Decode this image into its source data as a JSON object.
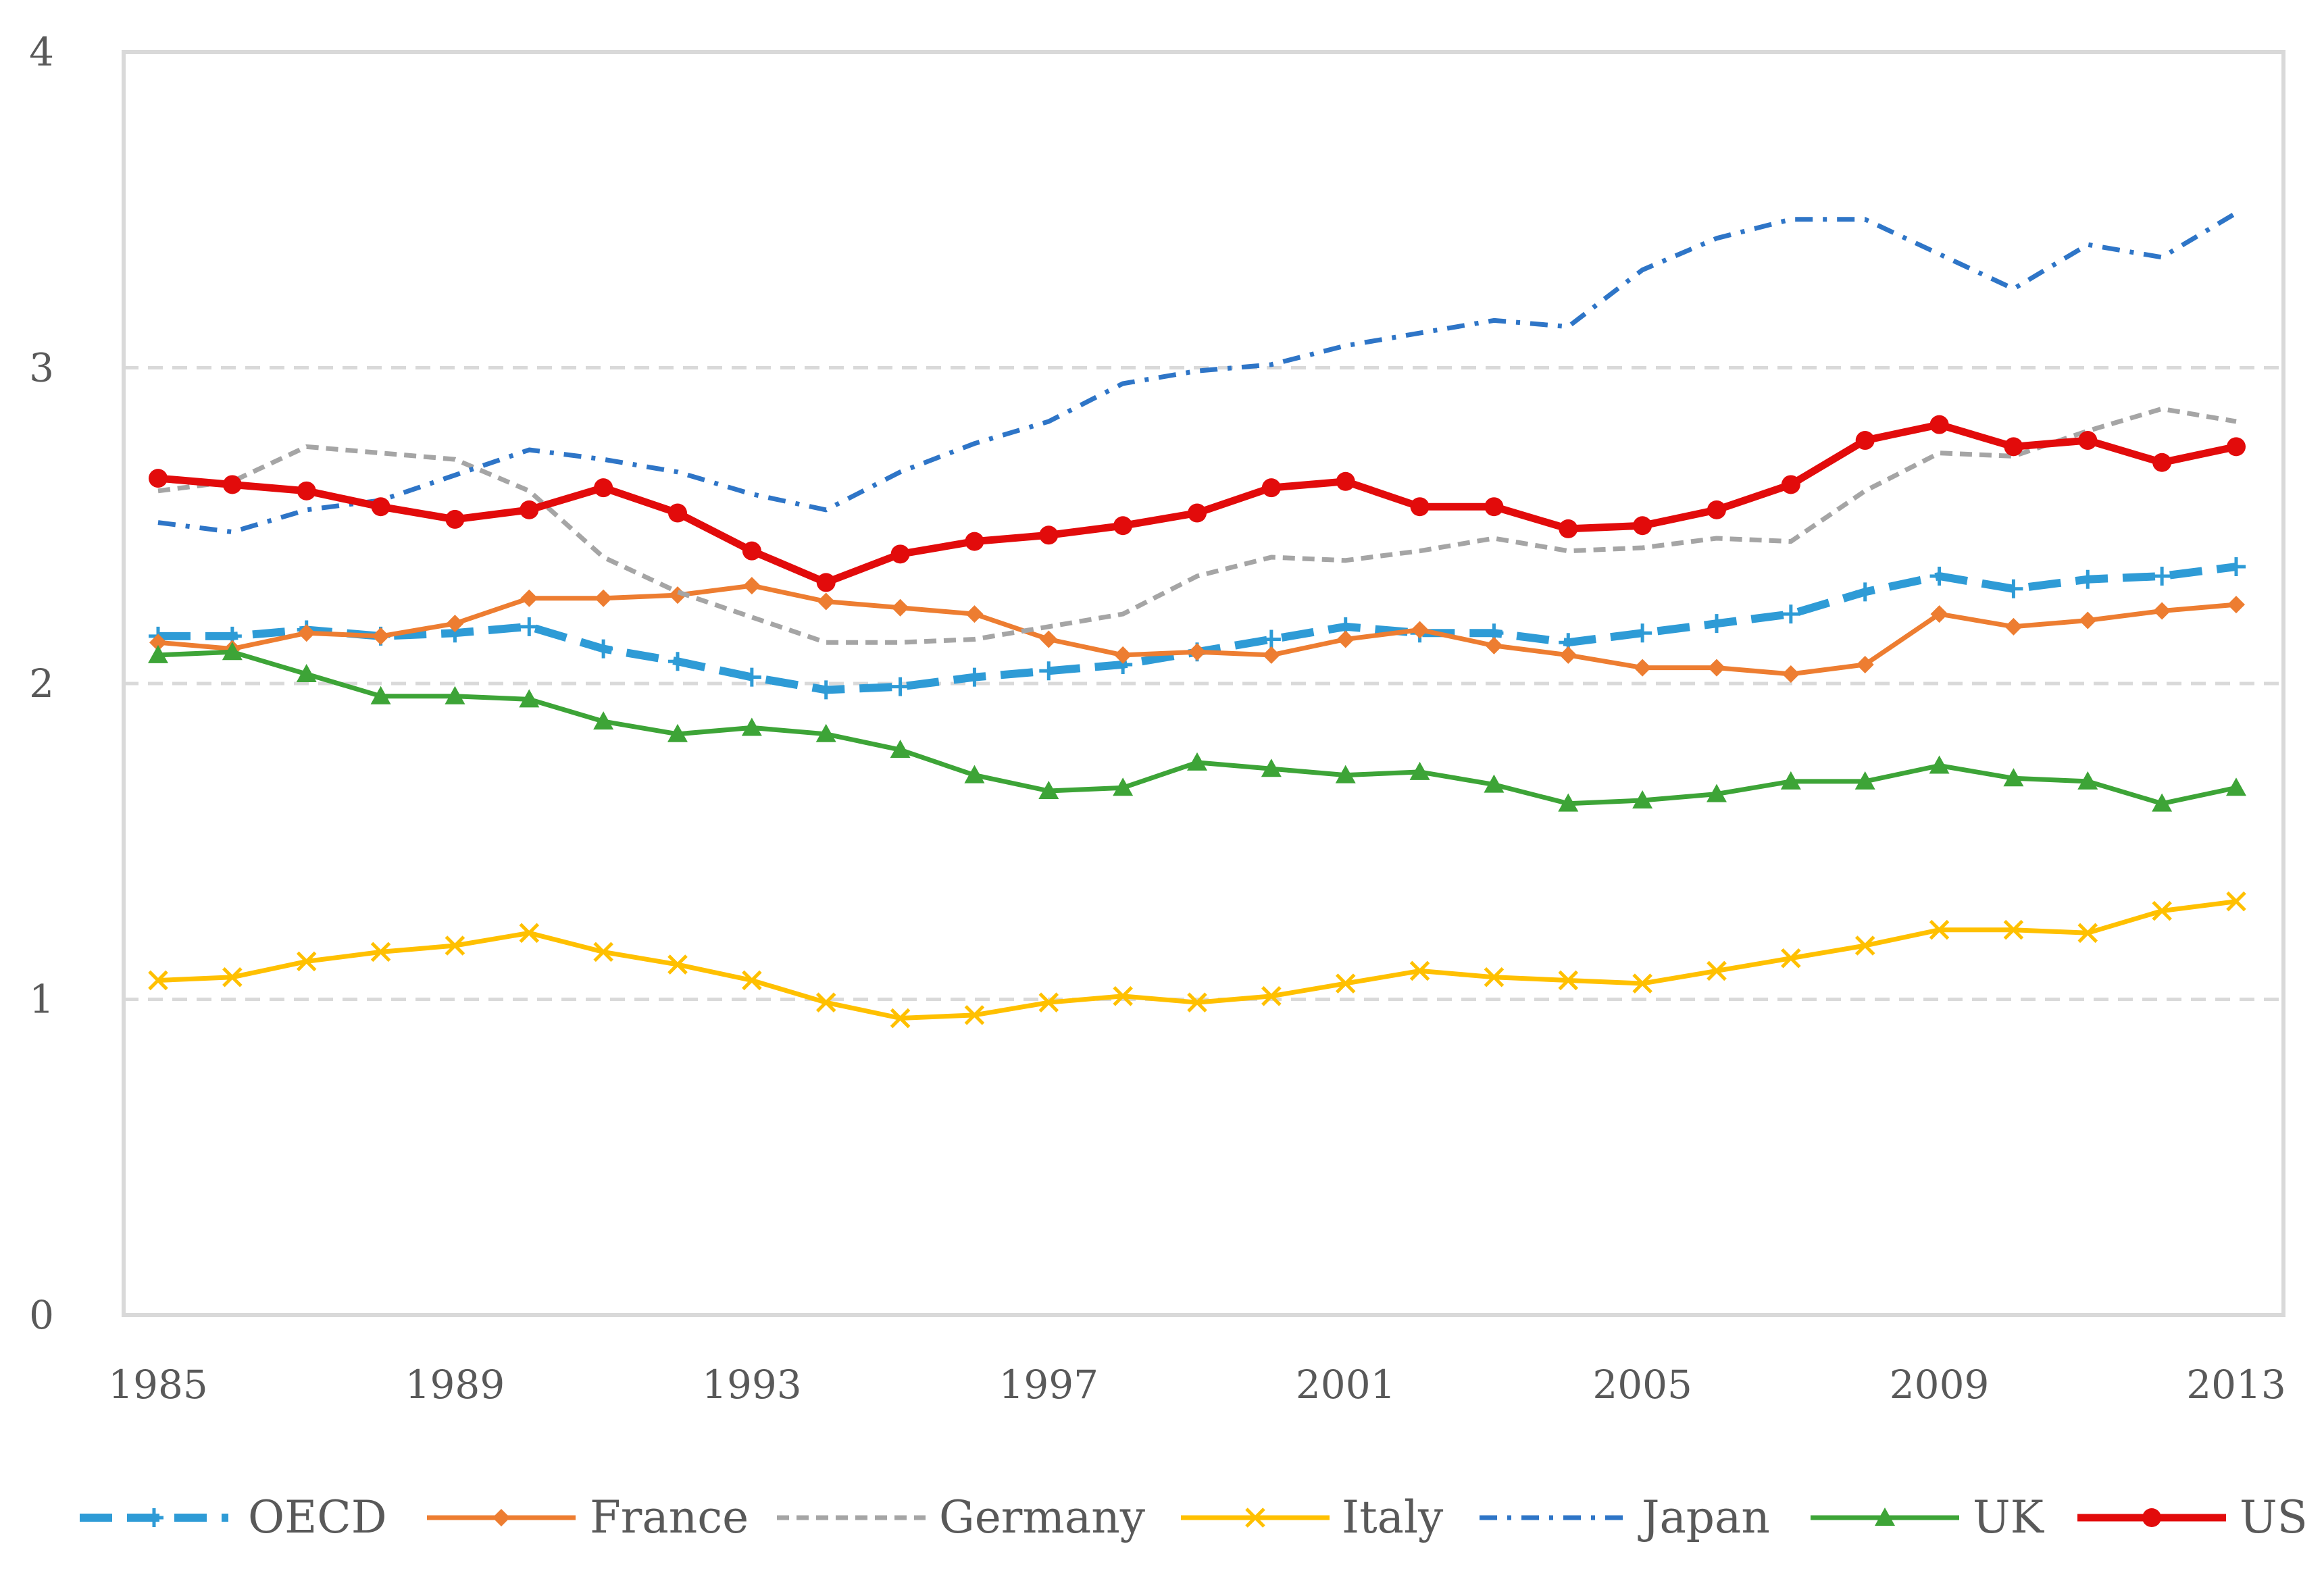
{
  "chart_data": {
    "type": "line",
    "title": "",
    "xlabel": "",
    "ylabel": "",
    "ylim": [
      0,
      4
    ],
    "y_ticks": [
      "0",
      "1",
      "2",
      "3",
      "4"
    ],
    "x_tick_labels": [
      "1985",
      "1989",
      "1993",
      "1997",
      "2001",
      "2005",
      "2009",
      "2013"
    ],
    "x": [
      1985,
      1986,
      1987,
      1988,
      1989,
      1990,
      1991,
      1992,
      1993,
      1994,
      1995,
      1996,
      1997,
      1998,
      1999,
      2000,
      2001,
      2002,
      2003,
      2004,
      2005,
      2006,
      2007,
      2008,
      2009,
      2010,
      2011,
      2012,
      2013
    ],
    "grid": true,
    "legend_position": "bottom",
    "series": [
      {
        "name": "OECD",
        "color": "#2E9BD6",
        "style": "dashed",
        "marker": "plus",
        "values": [
          2.15,
          2.15,
          2.17,
          2.15,
          2.16,
          2.18,
          2.11,
          2.07,
          2.02,
          1.98,
          1.99,
          2.02,
          2.04,
          2.06,
          2.1,
          2.14,
          2.18,
          2.16,
          2.16,
          2.13,
          2.16,
          2.19,
          2.22,
          2.29,
          2.34,
          2.3,
          2.33,
          2.34,
          2.37
        ]
      },
      {
        "name": "France",
        "color": "#ED7D31",
        "style": "solid",
        "marker": "diamond",
        "values": [
          2.13,
          2.11,
          2.16,
          2.15,
          2.19,
          2.27,
          2.27,
          2.28,
          2.31,
          2.26,
          2.24,
          2.22,
          2.14,
          2.09,
          2.1,
          2.09,
          2.14,
          2.17,
          2.12,
          2.09,
          2.05,
          2.05,
          2.03,
          2.06,
          2.22,
          2.18,
          2.2,
          2.23,
          2.25
        ]
      },
      {
        "name": "Germany",
        "color": "#A5A5A5",
        "style": "dotted",
        "marker": "none",
        "values": [
          2.61,
          2.64,
          2.75,
          2.73,
          2.71,
          2.61,
          2.4,
          2.29,
          2.21,
          2.13,
          2.13,
          2.14,
          2.18,
          2.22,
          2.34,
          2.4,
          2.39,
          2.42,
          2.46,
          2.42,
          2.43,
          2.46,
          2.45,
          2.61,
          2.73,
          2.72,
          2.8,
          2.87,
          2.83
        ]
      },
      {
        "name": "Italy",
        "color": "#FFC000",
        "style": "solid",
        "marker": "x",
        "values": [
          1.06,
          1.07,
          1.12,
          1.15,
          1.17,
          1.21,
          1.15,
          1.11,
          1.06,
          0.99,
          0.94,
          0.95,
          0.99,
          1.01,
          0.99,
          1.01,
          1.05,
          1.09,
          1.07,
          1.06,
          1.05,
          1.09,
          1.13,
          1.17,
          1.22,
          1.22,
          1.21,
          1.28,
          1.31
        ]
      },
      {
        "name": "Japan",
        "color": "#2E75C7",
        "style": "dashdot",
        "marker": "none",
        "values": [
          2.51,
          2.48,
          2.55,
          2.58,
          2.66,
          2.74,
          2.71,
          2.67,
          2.6,
          2.55,
          2.67,
          2.76,
          2.83,
          2.95,
          2.99,
          3.01,
          3.07,
          3.11,
          3.15,
          3.13,
          3.31,
          3.41,
          3.47,
          3.47,
          3.36,
          3.25,
          3.39,
          3.35,
          3.49
        ]
      },
      {
        "name": "UK",
        "color": "#3DA437",
        "style": "solid",
        "marker": "triangle",
        "values": [
          2.09,
          2.1,
          2.03,
          1.96,
          1.96,
          1.95,
          1.88,
          1.84,
          1.86,
          1.84,
          1.79,
          1.71,
          1.66,
          1.67,
          1.75,
          1.73,
          1.71,
          1.72,
          1.68,
          1.62,
          1.63,
          1.65,
          1.69,
          1.69,
          1.74,
          1.7,
          1.69,
          1.62,
          1.67
        ]
      },
      {
        "name": "US",
        "color": "#E20B0B",
        "style": "solid",
        "marker": "circle",
        "values": [
          2.65,
          2.63,
          2.61,
          2.56,
          2.52,
          2.55,
          2.62,
          2.54,
          2.42,
          2.32,
          2.41,
          2.45,
          2.47,
          2.5,
          2.54,
          2.62,
          2.64,
          2.56,
          2.56,
          2.49,
          2.5,
          2.55,
          2.63,
          2.77,
          2.82,
          2.75,
          2.77,
          2.7,
          2.75
        ]
      }
    ]
  }
}
